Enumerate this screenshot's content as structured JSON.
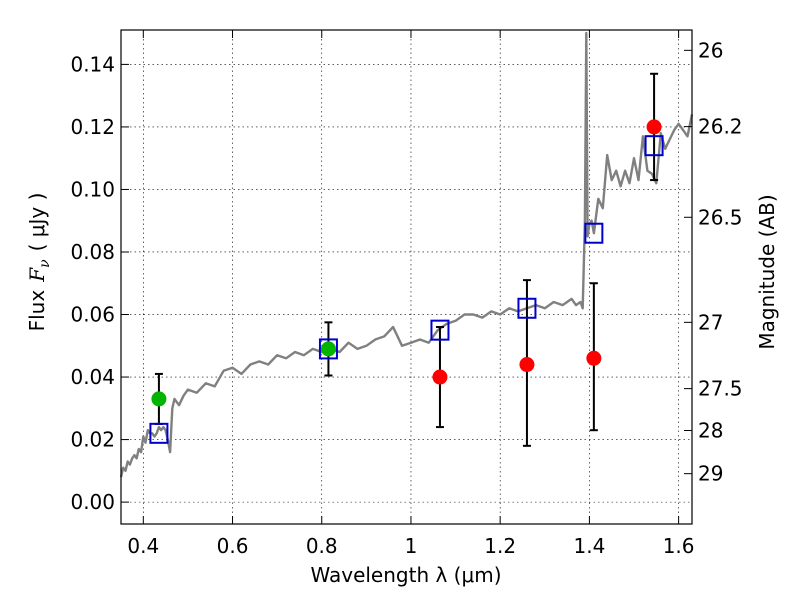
{
  "chart_data": {
    "type": "scatter",
    "xlabel": "Wavelength  λ (μm)",
    "ylabel_text": "Flux",
    "ylabel_symbol": "F",
    "ylabel_symbol_sub": "ν",
    "ylabel_units": "( μJy )",
    "y2label": "Magnitude (AB)",
    "xlim": [
      0.35,
      1.63
    ],
    "ylim": [
      -0.007,
      0.151
    ],
    "grid": true,
    "legend": "none",
    "x_ticks": [
      {
        "value": 0.4,
        "label": "0.4"
      },
      {
        "value": 0.6,
        "label": "0.6"
      },
      {
        "value": 0.8,
        "label": "0.8"
      },
      {
        "value": 1.0,
        "label": "1"
      },
      {
        "value": 1.2,
        "label": "1.2"
      },
      {
        "value": 1.4,
        "label": "1.4"
      },
      {
        "value": 1.6,
        "label": "1.6"
      }
    ],
    "y_ticks": [
      {
        "value": 0.0,
        "label": "0.00"
      },
      {
        "value": 0.02,
        "label": "0.02"
      },
      {
        "value": 0.04,
        "label": "0.04"
      },
      {
        "value": 0.06,
        "label": "0.06"
      },
      {
        "value": 0.08,
        "label": "0.08"
      },
      {
        "value": 0.1,
        "label": "0.10"
      },
      {
        "value": 0.12,
        "label": "0.12"
      },
      {
        "value": 0.14,
        "label": "0.14"
      }
    ],
    "y2_ticks": [
      {
        "flux": 0.1445,
        "label": "26"
      },
      {
        "flux": 0.1201,
        "label": "26.2"
      },
      {
        "flux": 0.0911,
        "label": "26.5"
      },
      {
        "flux": 0.0575,
        "label": "27"
      },
      {
        "flux": 0.0363,
        "label": "27.5"
      },
      {
        "flux": 0.0229,
        "label": "28"
      },
      {
        "flux": 0.0091,
        "label": "29"
      }
    ],
    "model_spectrum": {
      "color": "#808080",
      "x": [
        0.35,
        0.355,
        0.36,
        0.365,
        0.37,
        0.375,
        0.38,
        0.385,
        0.39,
        0.395,
        0.4,
        0.405,
        0.41,
        0.415,
        0.42,
        0.425,
        0.43,
        0.435,
        0.44,
        0.445,
        0.45,
        0.455,
        0.46,
        0.465,
        0.47,
        0.48,
        0.49,
        0.5,
        0.52,
        0.54,
        0.56,
        0.58,
        0.6,
        0.62,
        0.64,
        0.66,
        0.68,
        0.7,
        0.72,
        0.74,
        0.76,
        0.78,
        0.8,
        0.82,
        0.84,
        0.86,
        0.88,
        0.9,
        0.92,
        0.94,
        0.96,
        0.98,
        1.0,
        1.02,
        1.04,
        1.06,
        1.08,
        1.1,
        1.12,
        1.14,
        1.16,
        1.18,
        1.2,
        1.22,
        1.24,
        1.26,
        1.28,
        1.3,
        1.32,
        1.34,
        1.36,
        1.37,
        1.38,
        1.385,
        1.39,
        1.393,
        1.396,
        1.4,
        1.405,
        1.41,
        1.42,
        1.43,
        1.44,
        1.45,
        1.46,
        1.47,
        1.48,
        1.49,
        1.5,
        1.51,
        1.52,
        1.53,
        1.54,
        1.55,
        1.56,
        1.57,
        1.58,
        1.59,
        1.6,
        1.61,
        1.62,
        1.63
      ],
      "y": [
        0.008,
        0.011,
        0.01,
        0.013,
        0.012,
        0.014,
        0.015,
        0.014,
        0.017,
        0.016,
        0.021,
        0.019,
        0.023,
        0.022,
        0.022,
        0.021,
        0.022,
        0.024,
        0.023,
        0.024,
        0.023,
        0.02,
        0.016,
        0.03,
        0.033,
        0.031,
        0.034,
        0.036,
        0.035,
        0.038,
        0.037,
        0.042,
        0.043,
        0.041,
        0.044,
        0.045,
        0.044,
        0.047,
        0.046,
        0.048,
        0.047,
        0.049,
        0.048,
        0.049,
        0.048,
        0.051,
        0.049,
        0.05,
        0.052,
        0.053,
        0.056,
        0.05,
        0.051,
        0.052,
        0.051,
        0.055,
        0.057,
        0.058,
        0.06,
        0.06,
        0.059,
        0.061,
        0.06,
        0.062,
        0.061,
        0.062,
        0.063,
        0.062,
        0.064,
        0.063,
        0.065,
        0.063,
        0.064,
        0.062,
        0.09,
        0.15,
        0.085,
        0.089,
        0.09,
        0.086,
        0.097,
        0.094,
        0.111,
        0.103,
        0.106,
        0.101,
        0.106,
        0.102,
        0.11,
        0.103,
        0.117,
        0.106,
        0.105,
        0.102,
        0.118,
        0.113,
        0.116,
        0.119,
        0.121,
        0.119,
        0.117,
        0.124
      ]
    },
    "series": [
      {
        "marker": "square",
        "color": "#0000cc",
        "x": [
          0.435,
          0.815,
          1.065,
          1.26,
          1.41,
          1.545
        ],
        "y": [
          0.022,
          0.049,
          0.055,
          0.062,
          0.086,
          0.114
        ]
      },
      {
        "marker": "circle",
        "color": "#00b400",
        "x": [
          0.435,
          0.815
        ],
        "y": [
          0.033,
          0.049
        ],
        "yerr_low": [
          0.025,
          0.0405
        ],
        "yerr_high": [
          0.041,
          0.0575
        ]
      },
      {
        "marker": "circle",
        "color": "#ff0000",
        "x": [
          1.065,
          1.26,
          1.41,
          1.545
        ],
        "y": [
          0.04,
          0.044,
          0.046,
          0.12
        ],
        "yerr_low": [
          0.024,
          0.018,
          0.023,
          0.103
        ],
        "yerr_high": [
          0.056,
          0.071,
          0.07,
          0.137
        ]
      }
    ]
  }
}
